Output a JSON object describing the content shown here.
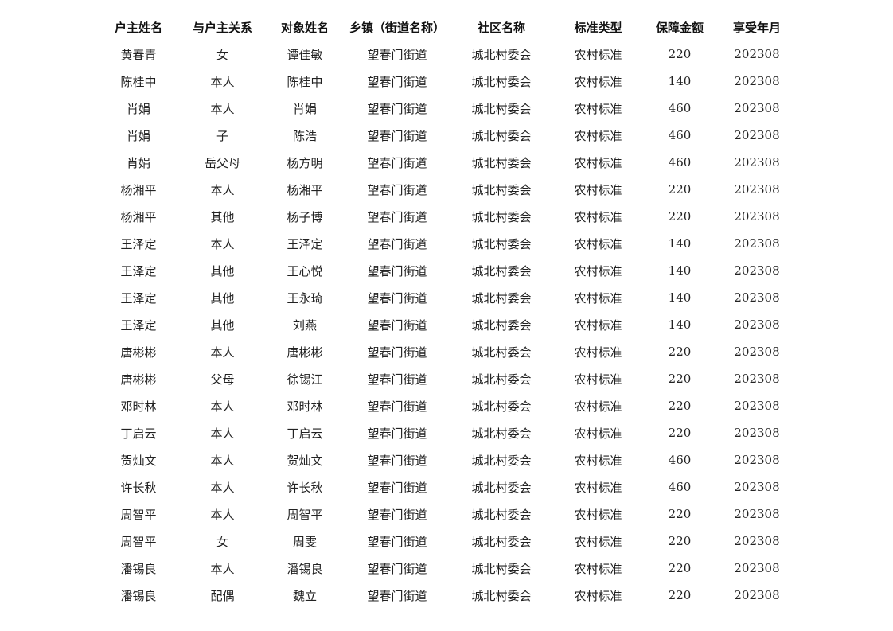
{
  "headers": [
    "户主姓名",
    "与户主关系",
    "对象姓名",
    "乡镇（街道名称）",
    "社区名称",
    "标准类型",
    "保障金额",
    "享受年月"
  ],
  "rows": [
    [
      "黄春青",
      "女",
      "谭佳敏",
      "望春门街道",
      "城北村委会",
      "农村标准",
      "220",
      "202308"
    ],
    [
      "陈桂中",
      "本人",
      "陈桂中",
      "望春门街道",
      "城北村委会",
      "农村标准",
      "140",
      "202308"
    ],
    [
      "肖娟",
      "本人",
      "肖娟",
      "望春门街道",
      "城北村委会",
      "农村标准",
      "460",
      "202308"
    ],
    [
      "肖娟",
      "子",
      "陈浩",
      "望春门街道",
      "城北村委会",
      "农村标准",
      "460",
      "202308"
    ],
    [
      "肖娟",
      "岳父母",
      "杨方明",
      "望春门街道",
      "城北村委会",
      "农村标准",
      "460",
      "202308"
    ],
    [
      "杨湘平",
      "本人",
      "杨湘平",
      "望春门街道",
      "城北村委会",
      "农村标准",
      "220",
      "202308"
    ],
    [
      "杨湘平",
      "其他",
      "杨子博",
      "望春门街道",
      "城北村委会",
      "农村标准",
      "220",
      "202308"
    ],
    [
      "王泽定",
      "本人",
      "王泽定",
      "望春门街道",
      "城北村委会",
      "农村标准",
      "140",
      "202308"
    ],
    [
      "王泽定",
      "其他",
      "王心悦",
      "望春门街道",
      "城北村委会",
      "农村标准",
      "140",
      "202308"
    ],
    [
      "王泽定",
      "其他",
      "王永琦",
      "望春门街道",
      "城北村委会",
      "农村标准",
      "140",
      "202308"
    ],
    [
      "王泽定",
      "其他",
      "刘燕",
      "望春门街道",
      "城北村委会",
      "农村标准",
      "140",
      "202308"
    ],
    [
      "唐彬彬",
      "本人",
      "唐彬彬",
      "望春门街道",
      "城北村委会",
      "农村标准",
      "220",
      "202308"
    ],
    [
      "唐彬彬",
      "父母",
      "徐锡江",
      "望春门街道",
      "城北村委会",
      "农村标准",
      "220",
      "202308"
    ],
    [
      "邓时林",
      "本人",
      "邓时林",
      "望春门街道",
      "城北村委会",
      "农村标准",
      "220",
      "202308"
    ],
    [
      "丁启云",
      "本人",
      "丁启云",
      "望春门街道",
      "城北村委会",
      "农村标准",
      "220",
      "202308"
    ],
    [
      "贺灿文",
      "本人",
      "贺灿文",
      "望春门街道",
      "城北村委会",
      "农村标准",
      "460",
      "202308"
    ],
    [
      "许长秋",
      "本人",
      "许长秋",
      "望春门街道",
      "城北村委会",
      "农村标准",
      "460",
      "202308"
    ],
    [
      "周智平",
      "本人",
      "周智平",
      "望春门街道",
      "城北村委会",
      "农村标准",
      "220",
      "202308"
    ],
    [
      "周智平",
      "女",
      "周雯",
      "望春门街道",
      "城北村委会",
      "农村标准",
      "220",
      "202308"
    ],
    [
      "潘锡良",
      "本人",
      "潘锡良",
      "望春门街道",
      "城北村委会",
      "农村标准",
      "220",
      "202308"
    ],
    [
      "潘锡良",
      "配偶",
      "魏立",
      "望春门街道",
      "城北村委会",
      "农村标准",
      "220",
      "202308"
    ]
  ]
}
